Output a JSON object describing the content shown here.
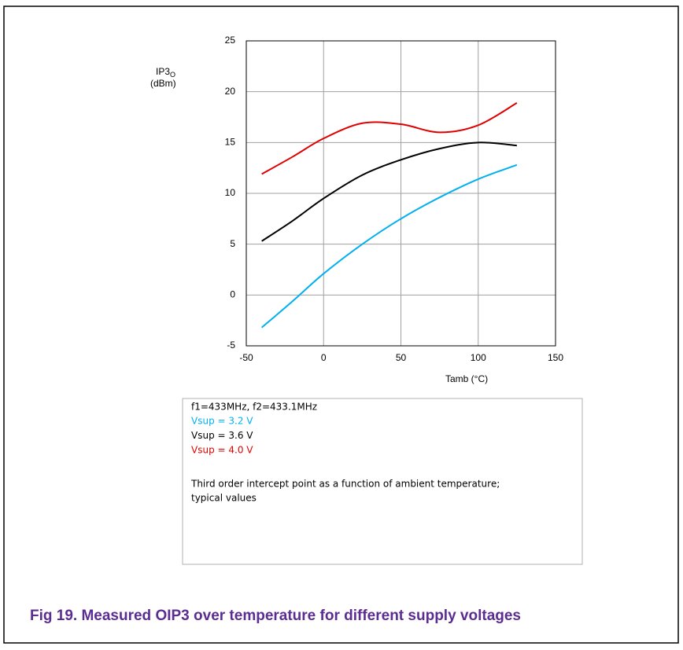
{
  "chart_data": {
    "type": "line",
    "y_label": "IP3",
    "y_label_sub": "O",
    "y_label_unit": "(dBm)",
    "x_label": "Tamb (°C)",
    "x": [
      -40,
      -20,
      0,
      25,
      50,
      75,
      100,
      125
    ],
    "series": [
      {
        "name": "Vsup = 3.2 V",
        "color": "#00b0f0",
        "values": [
          -3.2,
          -0.6,
          2.1,
          5.0,
          7.5,
          9.6,
          11.4,
          12.8
        ]
      },
      {
        "name": "Vsup = 3.6 V",
        "color": "#000000",
        "values": [
          5.3,
          7.3,
          9.5,
          11.8,
          13.3,
          14.4,
          15.0,
          14.7
        ]
      },
      {
        "name": "Vsup = 4.0 V",
        "color": "#e00000",
        "values": [
          11.9,
          13.6,
          15.4,
          16.9,
          16.8,
          16.0,
          16.7,
          18.9
        ]
      }
    ],
    "xlim": [
      -50,
      150
    ],
    "xticks": [
      -50,
      0,
      50,
      100,
      150
    ],
    "ylim": [
      -5,
      25
    ],
    "yticks": [
      -5,
      0,
      5,
      10,
      15,
      20,
      25
    ],
    "grid": true,
    "legend_header": "f1=433MHz, f2=433.1MHz",
    "note": [
      "Third order intercept point as a function of ambient temperature;",
      "typical values"
    ],
    "caption": "Fig 19. Measured OIP3 over temperature for different supply voltages"
  }
}
